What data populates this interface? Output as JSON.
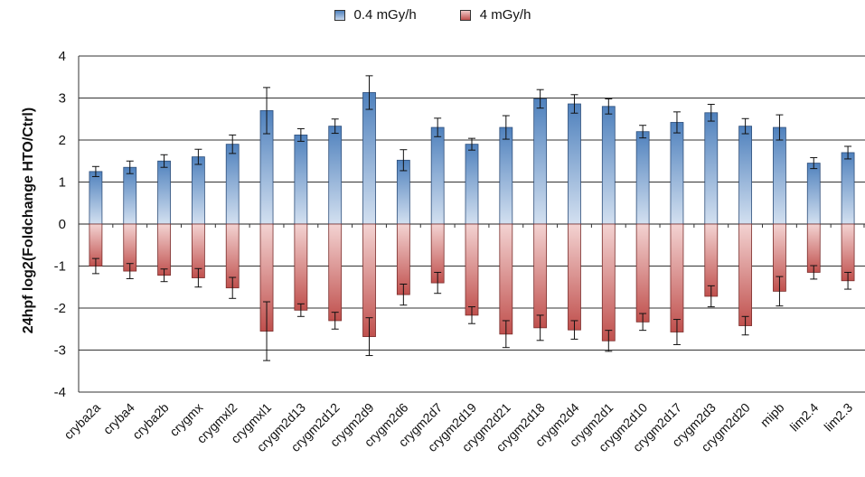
{
  "chart_data": {
    "type": "bar",
    "title": "",
    "xlabel": "",
    "ylabel": "24hpf log2(Foldchange HTO/Ctrl)",
    "ylim": [
      -4,
      4
    ],
    "yticks": [
      "4",
      "3",
      "2",
      "1",
      "0",
      "-1",
      "-2",
      "-3",
      "-4"
    ],
    "grid": true,
    "legend_position": "top-center",
    "categories": [
      "cryba2a",
      "cryba4",
      "cryba2b",
      "crygmx",
      "crygmxl2",
      "crygmxl1",
      "crygm2d13",
      "crygm2d12",
      "crygm2d9",
      "crygm2d6",
      "crygm2d7",
      "crygm2d19",
      "crygm2d21",
      "crygm2d18",
      "crygm2d4",
      "crygm2d1",
      "crygm2d10",
      "crygm2d17",
      "crygm2d3",
      "crygm2d20",
      "mipb",
      "lim2.4",
      "lim2.3"
    ],
    "series": [
      {
        "name": "0.4 mGy/h",
        "color": "#4f81bd",
        "values": [
          1.25,
          1.35,
          1.5,
          1.6,
          1.9,
          2.7,
          2.12,
          2.33,
          3.13,
          1.52,
          2.3,
          1.9,
          2.3,
          2.98,
          2.86,
          2.8,
          2.2,
          2.42,
          2.65,
          2.33,
          2.3,
          1.45,
          1.7
        ],
        "errors": [
          0.12,
          0.15,
          0.15,
          0.18,
          0.22,
          0.55,
          0.15,
          0.17,
          0.4,
          0.25,
          0.22,
          0.14,
          0.28,
          0.22,
          0.22,
          0.18,
          0.15,
          0.25,
          0.2,
          0.18,
          0.3,
          0.13,
          0.15
        ]
      },
      {
        "name": "4 mGy/h",
        "color": "#c0504d",
        "values": [
          -1.0,
          -1.12,
          -1.22,
          -1.28,
          -1.52,
          -2.55,
          -2.05,
          -2.3,
          -2.68,
          -1.68,
          -1.4,
          -2.17,
          -2.62,
          -2.47,
          -2.52,
          -2.78,
          -2.33,
          -2.57,
          -1.72,
          -2.42,
          -1.6,
          -1.15,
          -1.35
        ],
        "errors": [
          0.18,
          0.18,
          0.15,
          0.22,
          0.25,
          0.7,
          0.15,
          0.2,
          0.45,
          0.25,
          0.25,
          0.2,
          0.32,
          0.3,
          0.22,
          0.25,
          0.2,
          0.3,
          0.25,
          0.22,
          0.35,
          0.16,
          0.2
        ]
      }
    ]
  }
}
